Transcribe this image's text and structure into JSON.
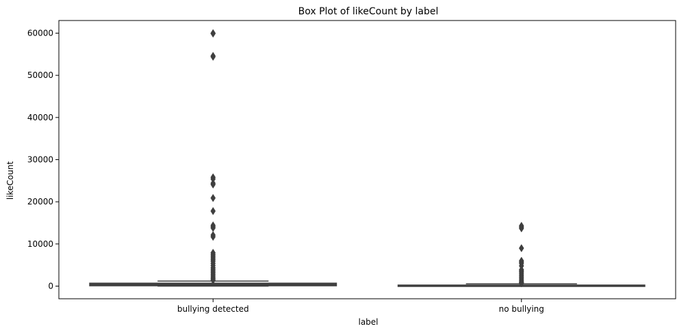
{
  "chart_data": {
    "type": "box",
    "title": "Box Plot of likeCount by label",
    "xlabel": "label",
    "ylabel": "likeCount",
    "categories": [
      "bullying detected",
      "no bullying"
    ],
    "ylim": [
      -3000,
      63000
    ],
    "yticks": [
      0,
      10000,
      20000,
      30000,
      40000,
      50000,
      60000
    ],
    "ytick_labels": [
      "0",
      "10000",
      "20000",
      "30000",
      "40000",
      "50000",
      "60000"
    ],
    "box_color": "#3f3f3f",
    "boxes": [
      {
        "category": "bullying detected",
        "whisker_low": 0,
        "q1": 80,
        "median": 200,
        "q3": 700,
        "whisker_high": 1200,
        "outliers": [
          60000,
          59900,
          54600,
          54400,
          25800,
          25400,
          24400,
          24100,
          20900,
          17800,
          14400,
          14100,
          13800,
          12100,
          11700,
          7900,
          7500,
          7100,
          6700,
          6300,
          5900,
          5400,
          4900,
          4400,
          4000,
          3600,
          3200,
          2800,
          2400,
          2000,
          1700,
          1400
        ]
      },
      {
        "category": "no bullying",
        "whisker_low": 0,
        "q1": 30,
        "median": 90,
        "q3": 250,
        "whisker_high": 550,
        "outliers": [
          14300,
          14000,
          13700,
          9000,
          6000,
          5700,
          5400,
          4800,
          3900,
          3600,
          3300,
          2900,
          2500,
          2100,
          1700,
          1300,
          1000,
          800,
          650
        ]
      }
    ]
  }
}
